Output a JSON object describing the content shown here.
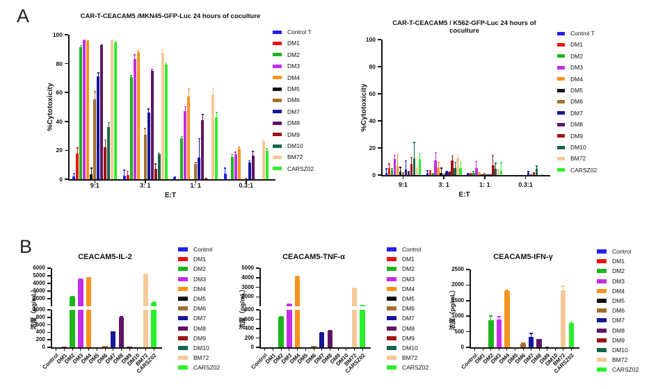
{
  "panels": {
    "a": {
      "label": "A"
    },
    "b": {
      "label": "B"
    }
  },
  "series_colors": {
    "control": "#2222ee",
    "dm1": "#ee1111",
    "dm2": "#1db51d",
    "dm3": "#c32ce8",
    "dm4": "#f7941e",
    "dm5": "#111111",
    "dm6": "#a3702d",
    "dm7": "#16169c",
    "dm8": "#5e1563",
    "dm9": "#9e1414",
    "dm10": "#166549",
    "bm72": "#f5c998",
    "carsz02": "#2bf02b"
  },
  "chart_data": [
    {
      "id": "mkn45",
      "type": "bar",
      "title": "CAR-T-CEACAM5 /MKN45-GFP-Luc 24 hours of coculture",
      "ylabel": "%Cytotoxicity",
      "xlabel": "E:T",
      "categories": [
        "9:1",
        "3: 1",
        "1: 1",
        "0.3:1"
      ],
      "segments": [
        {
          "range": [
            0,
            100
          ],
          "ticks": [
            0,
            20,
            40,
            60,
            80,
            100
          ]
        }
      ],
      "legend": [
        "Control T",
        "DM1",
        "DM2",
        "DM3",
        "DM4",
        "DM5",
        "DM6",
        "DM7",
        "DM8",
        "DM9",
        "DM10",
        "BM72",
        "CARSZ02"
      ],
      "legend_position": "right",
      "series": [
        {
          "name": "Control T",
          "color": "#2222ee",
          "values": [
            2,
            2.5,
            1.5,
            4
          ],
          "errors": [
            2.5,
            4,
            0.5,
            4
          ]
        },
        {
          "name": "DM1",
          "color": "#ee1111",
          "values": [
            18,
            3,
            0,
            0
          ],
          "errors": [
            4,
            3,
            0,
            0
          ]
        },
        {
          "name": "DM2",
          "color": "#1db51d",
          "values": [
            91.5,
            70.5,
            28.5,
            15.5
          ],
          "errors": [
            1.5,
            1.5,
            1.5,
            2
          ]
        },
        {
          "name": "DM3",
          "color": "#c32ce8",
          "values": [
            96,
            83,
            47,
            17.5
          ],
          "errors": [
            0.5,
            3.5,
            3.5,
            1.5
          ]
        },
        {
          "name": "DM4",
          "color": "#f7941e",
          "values": [
            95.5,
            88,
            57,
            21
          ],
          "errors": [
            0.5,
            1.5,
            6,
            1.5
          ]
        },
        {
          "name": "DM5",
          "color": "#111111",
          "values": [
            3.5,
            0,
            0,
            0
          ],
          "errors": [
            4.5,
            0,
            0,
            0
          ]
        },
        {
          "name": "DM6",
          "color": "#a3702d",
          "values": [
            55.5,
            31,
            10.5,
            0.5
          ],
          "errors": [
            5.5,
            4.5,
            1.5,
            0.5
          ]
        },
        {
          "name": "DM7",
          "color": "#16169c",
          "values": [
            71,
            46,
            15,
            11.5
          ],
          "errors": [
            3,
            3,
            13.5,
            1.5
          ]
        },
        {
          "name": "DM8",
          "color": "#5e1563",
          "values": [
            93,
            75,
            41,
            16.5
          ],
          "errors": [
            0.5,
            1.5,
            4,
            3
          ]
        },
        {
          "name": "DM9",
          "color": "#9e1414",
          "values": [
            22,
            7,
            0.5,
            0
          ],
          "errors": [
            5.5,
            4,
            0.5,
            0
          ]
        },
        {
          "name": "DM10",
          "color": "#166549",
          "values": [
            36,
            17.5,
            0,
            0
          ],
          "errors": [
            3.5,
            1,
            0,
            0
          ]
        },
        {
          "name": "BM72",
          "color": "#f5c998",
          "values": [
            96,
            87,
            58.5,
            26.5
          ],
          "errors": [
            0.5,
            3,
            4.5,
            1.5
          ]
        },
        {
          "name": "CARSZ02",
          "color": "#2bf02b",
          "values": [
            94.5,
            79.5,
            43,
            19.5
          ],
          "errors": [
            0.5,
            1.5,
            3.5,
            2
          ]
        }
      ]
    },
    {
      "id": "k562",
      "type": "bar",
      "title": "CAR-T-CEACAM5 / K562-GFP-Luc 24 hours of coculture",
      "ylabel": "%Cytotoxicity",
      "xlabel": "E:T",
      "categories": [
        "9:1",
        "3: 1",
        "1: 1",
        "0.3:1"
      ],
      "segments": [
        {
          "range": [
            0,
            100
          ],
          "ticks": [
            0,
            20,
            40,
            60,
            80,
            100
          ]
        }
      ],
      "legend": [
        "Control T",
        "DM1",
        "DM2",
        "DM3",
        "DM4",
        "DM5",
        "DM6",
        "DM7",
        "DM8",
        "DM9",
        "DM10",
        "BM72",
        "CARSZ02"
      ],
      "legend_position": "right",
      "series": [
        {
          "name": "Control T",
          "color": "#2222ee",
          "values": [
            1.5,
            1.5,
            1,
            0
          ],
          "errors": [
            3.5,
            2,
            0.5,
            0
          ]
        },
        {
          "name": "DM1",
          "color": "#ee1111",
          "values": [
            5,
            2,
            1,
            0
          ],
          "errors": [
            3.5,
            1.5,
            0.5,
            0
          ]
        },
        {
          "name": "DM2",
          "color": "#1db51d",
          "values": [
            3.5,
            1,
            1.5,
            0
          ],
          "errors": [
            1.5,
            0.5,
            1.5,
            0
          ]
        },
        {
          "name": "DM3",
          "color": "#c32ce8",
          "values": [
            12,
            11,
            5,
            0
          ],
          "errors": [
            3,
            6,
            5.5,
            0
          ]
        },
        {
          "name": "DM4",
          "color": "#f7941e",
          "values": [
            6.5,
            5.5,
            1.5,
            0
          ],
          "errors": [
            9,
            4,
            0.5,
            0
          ]
        },
        {
          "name": "DM5",
          "color": "#111111",
          "values": [
            2.5,
            1.5,
            0.3,
            0
          ],
          "errors": [
            3.5,
            4,
            0,
            0
          ]
        },
        {
          "name": "DM6",
          "color": "#a3702d",
          "values": [
            1,
            0.5,
            0.5,
            0
          ],
          "errors": [
            1,
            0.5,
            1,
            0
          ]
        },
        {
          "name": "DM7",
          "color": "#16169c",
          "values": [
            4,
            2.5,
            0.3,
            1.5
          ],
          "errors": [
            7,
            0.5,
            0,
            1.5
          ]
        },
        {
          "name": "DM8",
          "color": "#5e1563",
          "values": [
            2,
            2,
            0.3,
            0.5
          ],
          "errors": [
            1,
            0.5,
            0,
            0
          ]
        },
        {
          "name": "DM9",
          "color": "#9e1414",
          "values": [
            8,
            11,
            7,
            1.5
          ],
          "errors": [
            5.5,
            3.5,
            8,
            0.5
          ]
        },
        {
          "name": "DM10",
          "color": "#166549",
          "values": [
            12.5,
            5,
            4.5,
            4.5
          ],
          "errors": [
            12,
            5,
            4.5,
            2.5
          ]
        },
        {
          "name": "BM72",
          "color": "#f5c998",
          "values": [
            5.5,
            13,
            3.5,
            0
          ],
          "errors": [
            7.5,
            2,
            1,
            0
          ]
        },
        {
          "name": "CARSZ02",
          "color": "#2bf02b",
          "values": [
            12,
            5,
            3,
            0.3
          ],
          "errors": [
            4,
            5,
            6.5,
            0
          ]
        }
      ]
    },
    {
      "id": "il2",
      "type": "bar",
      "title": "CEACAM5-IL-2",
      "ylabel": "浓度（pg/mL）",
      "axis_break": true,
      "categories": [
        "Control",
        "DM1",
        "DM2",
        "DM3",
        "DM4",
        "DM5",
        "DM6",
        "DM7",
        "DM8",
        "DM9",
        "DM10",
        "BM72",
        "CARSZ02"
      ],
      "colors": [
        "#2222ee",
        "#ee1111",
        "#1db51d",
        "#c32ce8",
        "#f7941e",
        "#111111",
        "#a3702d",
        "#16169c",
        "#5e1563",
        "#9e1414",
        "#166549",
        "#f5c998",
        "#2bf02b"
      ],
      "values": [
        0,
        15,
        2300,
        4550,
        4800,
        0,
        30,
        420,
        790,
        10,
        0,
        5200,
        1500
      ],
      "errors": [
        0,
        5,
        60,
        80,
        60,
        0,
        10,
        15,
        40,
        5,
        0,
        80,
        100
      ],
      "segments": [
        {
          "range": [
            0,
            1000
          ],
          "ticks": [
            0,
            200,
            400,
            600,
            800,
            1000
          ]
        },
        {
          "range": [
            1000,
            6000
          ],
          "ticks": [
            2000,
            3000,
            4000,
            5000,
            6000
          ]
        }
      ],
      "legend": [
        "Control",
        "DM1",
        "DM2",
        "DM3",
        "DM4",
        "DM5",
        "DM6",
        "DM7",
        "DM8",
        "DM9",
        "DM10",
        "BM72",
        "CARSZ02"
      ],
      "legend_position": "right"
    },
    {
      "id": "tnf",
      "type": "bar",
      "title": "CEACAM5-TNF-α",
      "ylabel": "浓度（pg/mL）",
      "axis_break": true,
      "categories": [
        "Control",
        "DM1",
        "DM2",
        "DM3",
        "DM4",
        "DM5",
        "DM6",
        "DM7",
        "DM8",
        "DM9",
        "DM10",
        "BM72",
        "CARSZ02"
      ],
      "colors": [
        "#2222ee",
        "#ee1111",
        "#1db51d",
        "#c32ce8",
        "#f7941e",
        "#111111",
        "#a3702d",
        "#16169c",
        "#5e1563",
        "#9e1414",
        "#166549",
        "#f5c998",
        "#2bf02b"
      ],
      "values": [
        0,
        0,
        650,
        1200,
        4150,
        0,
        25,
        310,
        350,
        0,
        0,
        2900,
        1100
      ],
      "errors": [
        0,
        0,
        15,
        70,
        70,
        0,
        8,
        12,
        15,
        0,
        0,
        60,
        60
      ],
      "segments": [
        {
          "range": [
            0,
            800
          ],
          "ticks": [
            0,
            200,
            400,
            600,
            800
          ]
        },
        {
          "range": [
            1000,
            5000
          ],
          "ticks": [
            2000,
            3000,
            4000,
            5000
          ]
        }
      ],
      "legend": [
        "Control",
        "DM1",
        "DM2",
        "DM3",
        "DM4",
        "DM5",
        "DM6",
        "DM7",
        "DM8",
        "DM9",
        "DM10",
        "BM72",
        "CARSZ02"
      ],
      "legend_position": "right"
    },
    {
      "id": "ifn",
      "type": "bar",
      "title": "CEACAM5-IFN-γ",
      "ylabel": "浓度（pg/mL）",
      "categories": [
        "Control",
        "DM1",
        "DM2",
        "DM3",
        "DM4",
        "DM5",
        "DM6",
        "DM7",
        "DM8",
        "DM9",
        "DM10",
        "BM72",
        "CARSZ02"
      ],
      "colors": [
        "#2222ee",
        "#ee1111",
        "#1db51d",
        "#c32ce8",
        "#f7941e",
        "#111111",
        "#a3702d",
        "#16169c",
        "#5e1563",
        "#9e1414",
        "#166549",
        "#f5c998",
        "#2bf02b"
      ],
      "values": [
        0,
        0,
        870,
        900,
        1800,
        0,
        120,
        330,
        260,
        10,
        0,
        1840,
        780
      ],
      "errors": [
        0,
        0,
        150,
        100,
        50,
        0,
        35,
        130,
        15,
        5,
        0,
        140,
        50
      ],
      "segments": [
        {
          "range": [
            0,
            2500
          ],
          "ticks": [
            0,
            500,
            1000,
            1500,
            2000,
            2500
          ]
        }
      ],
      "legend": [
        "Control",
        "DM1",
        "DM2",
        "DM3",
        "DM4",
        "DM5",
        "DM6",
        "DM7",
        "DM8",
        "DM9",
        "DM10",
        "BM72",
        "CARSZ02"
      ],
      "legend_position": "right"
    }
  ]
}
